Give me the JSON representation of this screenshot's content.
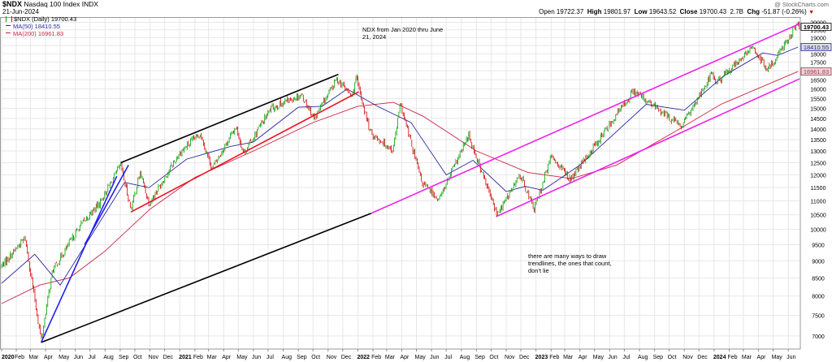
{
  "header": {
    "symbol": "$NDX",
    "name": "Nasdaq 100 Index",
    "exchange": "INDX",
    "date": "21-Jun-2024",
    "watermark": "@ StockCharts.com",
    "open_label": "Open",
    "open": "19722.37",
    "high_label": "High",
    "high": "19801.97",
    "low_label": "Low",
    "low": "19643.52",
    "close_label": "Close",
    "close": "19700.43",
    "volume": "2.7B",
    "chg_label": "Chg",
    "chg": "-51.87 (-0.26%)",
    "chg_arrow": "▼"
  },
  "legend": {
    "main": "$NDX (Daily) 19700.43",
    "ma50": "MA(50) 18410.55",
    "ma200": "MA(200) 16961.83"
  },
  "annotations": {
    "top": [
      "NDX from Jan 2020 thru June",
      "21, 2024"
    ],
    "bottom": [
      "there are many ways to draw",
      "trendlines, the ones that count,",
      "don't lie"
    ]
  },
  "colors": {
    "up": "#00a000",
    "down": "#d10000",
    "ma50": "#2a2aa0",
    "ma200": "#cc2244",
    "grid": "#e7e7e7",
    "magenta": "#ee22ee",
    "blue": "#2222ee",
    "red": "#ee1122",
    "black": "#000000",
    "tag_bg": "#dcdcdc"
  },
  "chart_data": {
    "type": "candlestick",
    "title": "NDX Nasdaq 100 Index (Daily)",
    "y_scale": "log",
    "ylim": [
      6700,
      20300
    ],
    "y_ticks": [
      7000,
      7500,
      8000,
      8500,
      9000,
      9500,
      10000,
      10500,
      11000,
      11500,
      12000,
      12500,
      13000,
      13500,
      14000,
      14500,
      15000,
      15500,
      16000,
      16500,
      17000,
      17500,
      18000,
      18500,
      19000,
      19500,
      20000
    ],
    "x_range": [
      "2020-01-02",
      "2024-06-24"
    ],
    "x_ticks": [
      {
        "label": "2020",
        "bold": true,
        "date": "2020-01-02"
      },
      {
        "label": "Feb",
        "date": "2020-02-01"
      },
      {
        "label": "Mar",
        "date": "2020-03-01"
      },
      {
        "label": "Apr",
        "date": "2020-04-01"
      },
      {
        "label": "May",
        "date": "2020-05-01"
      },
      {
        "label": "Jun",
        "date": "2020-06-01"
      },
      {
        "label": "Jul",
        "date": "2020-07-01"
      },
      {
        "label": "Aug",
        "date": "2020-08-01"
      },
      {
        "label": "Sep",
        "date": "2020-09-01"
      },
      {
        "label": "Oct",
        "date": "2020-10-01"
      },
      {
        "label": "Nov",
        "date": "2020-11-01"
      },
      {
        "label": "Dec",
        "date": "2020-12-01"
      },
      {
        "label": "2021",
        "bold": true,
        "date": "2021-01-01"
      },
      {
        "label": "Feb",
        "date": "2021-02-01"
      },
      {
        "label": "Mar",
        "date": "2021-03-01"
      },
      {
        "label": "Apr",
        "date": "2021-04-01"
      },
      {
        "label": "May",
        "date": "2021-05-01"
      },
      {
        "label": "Jun",
        "date": "2021-06-01"
      },
      {
        "label": "Jul",
        "date": "2021-07-01"
      },
      {
        "label": "Aug",
        "date": "2021-08-01"
      },
      {
        "label": "Sep",
        "date": "2021-09-01"
      },
      {
        "label": "Oct",
        "date": "2021-10-01"
      },
      {
        "label": "Nov",
        "date": "2021-11-01"
      },
      {
        "label": "Dec",
        "date": "2021-12-01"
      },
      {
        "label": "2022",
        "bold": true,
        "date": "2022-01-01"
      },
      {
        "label": "Feb",
        "date": "2022-02-01"
      },
      {
        "label": "Mar",
        "date": "2022-03-01"
      },
      {
        "label": "Apr",
        "date": "2022-04-01"
      },
      {
        "label": "May",
        "date": "2022-05-01"
      },
      {
        "label": "Jun",
        "date": "2022-06-01"
      },
      {
        "label": "Jul",
        "date": "2022-07-01"
      },
      {
        "label": "Aug",
        "date": "2022-08-01"
      },
      {
        "label": "Sep",
        "date": "2022-09-01"
      },
      {
        "label": "Oct",
        "date": "2022-10-01"
      },
      {
        "label": "Nov",
        "date": "2022-11-01"
      },
      {
        "label": "Dec",
        "date": "2022-12-01"
      },
      {
        "label": "2023",
        "bold": true,
        "date": "2023-01-01"
      },
      {
        "label": "Feb",
        "date": "2023-02-01"
      },
      {
        "label": "Mar",
        "date": "2023-03-01"
      },
      {
        "label": "Apr",
        "date": "2023-04-01"
      },
      {
        "label": "May",
        "date": "2023-05-01"
      },
      {
        "label": "Jun",
        "date": "2023-06-01"
      },
      {
        "label": "Jul",
        "date": "2023-07-01"
      },
      {
        "label": "Aug",
        "date": "2023-08-01"
      },
      {
        "label": "Sep",
        "date": "2023-09-01"
      },
      {
        "label": "Oct",
        "date": "2023-10-01"
      },
      {
        "label": "Nov",
        "date": "2023-11-01"
      },
      {
        "label": "Dec",
        "date": "2023-12-01"
      },
      {
        "label": "2024",
        "bold": true,
        "date": "2024-01-01"
      },
      {
        "label": "Feb",
        "date": "2024-02-01"
      },
      {
        "label": "Mar",
        "date": "2024-03-01"
      },
      {
        "label": "Apr",
        "date": "2024-04-01"
      },
      {
        "label": "May",
        "date": "2024-05-01"
      },
      {
        "label": "Jun",
        "date": "2024-06-01"
      }
    ],
    "price_path": [
      [
        "2020-01-02",
        8850
      ],
      [
        "2020-02-19",
        9720
      ],
      [
        "2020-03-23",
        6900
      ],
      [
        "2020-04-15",
        8700
      ],
      [
        "2020-06-10",
        10100
      ],
      [
        "2020-07-20",
        10900
      ],
      [
        "2020-09-02",
        12400
      ],
      [
        "2020-09-23",
        10700
      ],
      [
        "2020-10-12",
        12100
      ],
      [
        "2020-10-30",
        10900
      ],
      [
        "2020-12-31",
        12900
      ],
      [
        "2021-02-12",
        13800
      ],
      [
        "2021-03-08",
        12250
      ],
      [
        "2021-04-26",
        14100
      ],
      [
        "2021-05-12",
        12900
      ],
      [
        "2021-07-07",
        15000
      ],
      [
        "2021-09-07",
        15700
      ],
      [
        "2021-10-04",
        14500
      ],
      [
        "2021-11-19",
        16550
      ],
      [
        "2021-12-20",
        15600
      ],
      [
        "2021-12-28",
        16600
      ],
      [
        "2022-01-27",
        13800
      ],
      [
        "2022-03-14",
        13050
      ],
      [
        "2022-03-29",
        15200
      ],
      [
        "2022-05-12",
        11700
      ],
      [
        "2022-06-16",
        11050
      ],
      [
        "2022-08-16",
        13700
      ],
      [
        "2022-10-13",
        10500
      ],
      [
        "2022-11-30",
        12000
      ],
      [
        "2022-12-28",
        10700
      ],
      [
        "2023-02-02",
        12800
      ],
      [
        "2023-03-13",
        11800
      ],
      [
        "2023-07-19",
        15900
      ],
      [
        "2023-10-26",
        14100
      ],
      [
        "2023-12-28",
        16900
      ],
      [
        "2024-01-04",
        16300
      ],
      [
        "2024-03-21",
        18400
      ],
      [
        "2024-04-19",
        17000
      ],
      [
        "2024-06-20",
        19900
      ],
      [
        "2024-06-21",
        19700
      ]
    ],
    "series": [
      {
        "name": "MA(50)",
        "last": 18410.55,
        "points": [
          [
            "2020-01-02",
            8350
          ],
          [
            "2020-03-10",
            9200
          ],
          [
            "2020-05-01",
            8300
          ],
          [
            "2020-06-20",
            9450
          ],
          [
            "2020-09-10",
            11700
          ],
          [
            "2020-10-30",
            11500
          ],
          [
            "2021-01-15",
            12650
          ],
          [
            "2021-04-15",
            13200
          ],
          [
            "2021-06-01",
            13400
          ],
          [
            "2021-09-01",
            15050
          ],
          [
            "2021-10-20",
            15100
          ],
          [
            "2021-12-10",
            16000
          ],
          [
            "2022-02-10",
            15100
          ],
          [
            "2022-04-20",
            14300
          ],
          [
            "2022-07-01",
            12000
          ],
          [
            "2022-08-25",
            12600
          ],
          [
            "2022-11-01",
            11350
          ],
          [
            "2022-12-10",
            11550
          ],
          [
            "2023-01-15",
            11400
          ],
          [
            "2023-04-01",
            12400
          ],
          [
            "2023-08-15",
            15200
          ],
          [
            "2023-11-01",
            14900
          ],
          [
            "2024-01-20",
            16700
          ],
          [
            "2024-04-10",
            18050
          ],
          [
            "2024-05-10",
            17900
          ],
          [
            "2024-06-21",
            18410
          ]
        ]
      },
      {
        "name": "MA(200)",
        "last": 16961.83,
        "points": [
          [
            "2020-01-02",
            7800
          ],
          [
            "2020-03-20",
            8300
          ],
          [
            "2020-05-20",
            8500
          ],
          [
            "2020-08-01",
            9300
          ],
          [
            "2020-11-01",
            10700
          ],
          [
            "2021-02-01",
            11900
          ],
          [
            "2021-06-01",
            13000
          ],
          [
            "2021-10-01",
            14300
          ],
          [
            "2022-01-01",
            15100
          ],
          [
            "2022-03-15",
            15300
          ],
          [
            "2022-05-15",
            14600
          ],
          [
            "2022-09-01",
            13000
          ],
          [
            "2022-12-15",
            12100
          ],
          [
            "2023-03-15",
            11850
          ],
          [
            "2023-06-15",
            12400
          ],
          [
            "2023-10-15",
            13900
          ],
          [
            "2024-01-15",
            15200
          ],
          [
            "2024-06-21",
            16961
          ]
        ]
      }
    ],
    "trendlines": [
      {
        "color": "black",
        "from": [
          "2020-03-23",
          6850
        ],
        "to": [
          "2022-01-28",
          10550
        ]
      },
      {
        "color": "black",
        "from": [
          "2020-09-02",
          12500
        ],
        "to": [
          "2021-11-22",
          16800
        ]
      },
      {
        "color": "red",
        "from": [
          "2020-09-23",
          10600
        ],
        "to": [
          "2022-01-03",
          15850
        ]
      },
      {
        "color": "blue",
        "from": [
          "2020-03-23",
          6850
        ],
        "to": [
          "2020-08-25",
          11950
        ]
      },
      {
        "color": "blue",
        "from": [
          "2020-06-20",
          9500
        ],
        "to": [
          "2020-09-18",
          12400
        ]
      },
      {
        "color": "magenta",
        "from": [
          "2022-01-28",
          10550
        ],
        "to": [
          "2024-06-24",
          19900
        ]
      },
      {
        "color": "magenta",
        "from": [
          "2022-10-13",
          10450
        ],
        "to": [
          "2024-06-24",
          16550
        ]
      }
    ],
    "price_tags": [
      {
        "value": "19700.43",
        "at": 19700,
        "style": "dark"
      },
      {
        "value": "18410.55",
        "at": 18410,
        "style": "blue"
      },
      {
        "value": "16961.83",
        "at": 16961,
        "style": "red"
      }
    ]
  }
}
